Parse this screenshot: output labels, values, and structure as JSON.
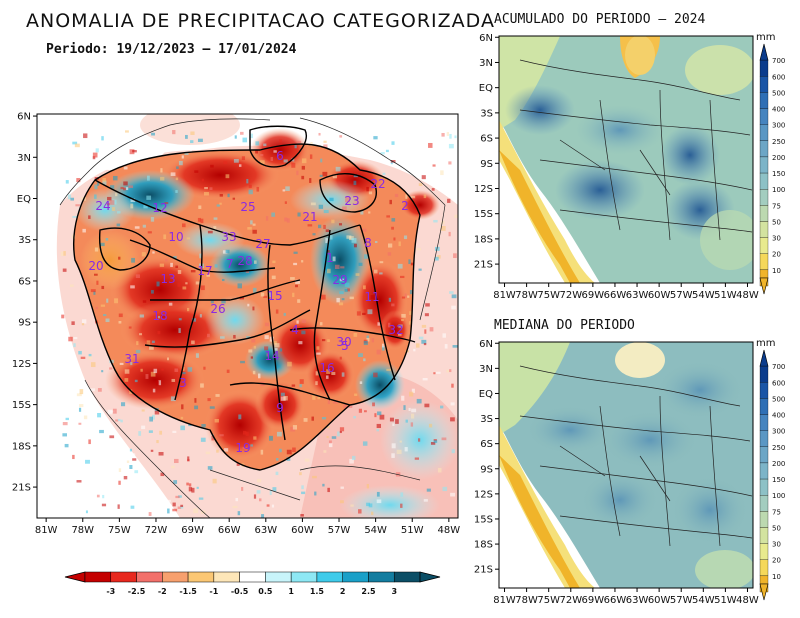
{
  "title": "ANOMALIA DE PRECIPITACAO CATEGORIZADA",
  "subtitle": "Periodo: 19/12/2023 — 17/01/2024",
  "main_map": {
    "lat_labels": [
      "6N",
      "3N",
      "EQ",
      "3S",
      "6S",
      "9S",
      "12S",
      "15S",
      "18S",
      "21S"
    ],
    "lon_labels": [
      "81W",
      "78W",
      "75W",
      "72W",
      "69W",
      "66W",
      "63W",
      "60W",
      "57W",
      "54W",
      "51W",
      "48W"
    ],
    "basins": [
      "1",
      "2",
      "3",
      "4",
      "5",
      "6",
      "7",
      "8",
      "9",
      "10",
      "11",
      "12",
      "13",
      "14",
      "15",
      "16",
      "17",
      "18",
      "19",
      "20",
      "21",
      "22",
      "23",
      "24",
      "25",
      "26",
      "27",
      "28",
      "29",
      "30",
      "31",
      "32",
      "33"
    ],
    "colorbar": {
      "labels": [
        "-3",
        "-2.5",
        "-2",
        "-1.5",
        "-1",
        "-0.5",
        "0.5",
        "1",
        "1.5",
        "2",
        "2.5",
        "3"
      ],
      "colors": [
        "#c40000",
        "#e8281e",
        "#f2706a",
        "#f7a06e",
        "#fbc774",
        "#fde6b8",
        "#ffffff",
        "#c8f4fa",
        "#8ee8f4",
        "#3fcbea",
        "#1aa0c8",
        "#137da0",
        "#0b4e66"
      ]
    }
  },
  "panel_accum": {
    "title": "ACUMULADO DO PERIODO — 2024",
    "lat_labels": [
      "6N",
      "3N",
      "EQ",
      "3S",
      "6S",
      "9S",
      "12S",
      "15S",
      "18S",
      "21S"
    ],
    "lon_labels": [
      "81W",
      "78W",
      "75W",
      "72W",
      "69W",
      "66W",
      "63W",
      "60W",
      "57W",
      "54W",
      "51W",
      "48W"
    ]
  },
  "panel_median": {
    "title": "MEDIANA DO PERIODO",
    "lat_labels": [
      "6N",
      "3N",
      "EQ",
      "3S",
      "6S",
      "9S",
      "12S",
      "15S",
      "18S",
      "21S"
    ],
    "lon_labels": [
      "81W",
      "78W",
      "75W",
      "72W",
      "69W",
      "66W",
      "63W",
      "60W",
      "57W",
      "54W",
      "51W",
      "48W"
    ]
  },
  "mm_scale": {
    "unit": "mm",
    "labels": [
      "700",
      "600",
      "500",
      "400",
      "300",
      "250",
      "200",
      "150",
      "100",
      "75",
      "50",
      "30",
      "20",
      "10"
    ],
    "colors": [
      "#0b3c8c",
      "#1a55a6",
      "#2f6fb5",
      "#4684bf",
      "#5a97c4",
      "#6ca6c6",
      "#7cb4c8",
      "#8dc1c6",
      "#a3cdbf",
      "#bcd9b0",
      "#d3e3a0",
      "#e8ea8e",
      "#f5d85a",
      "#f0b42a"
    ]
  }
}
